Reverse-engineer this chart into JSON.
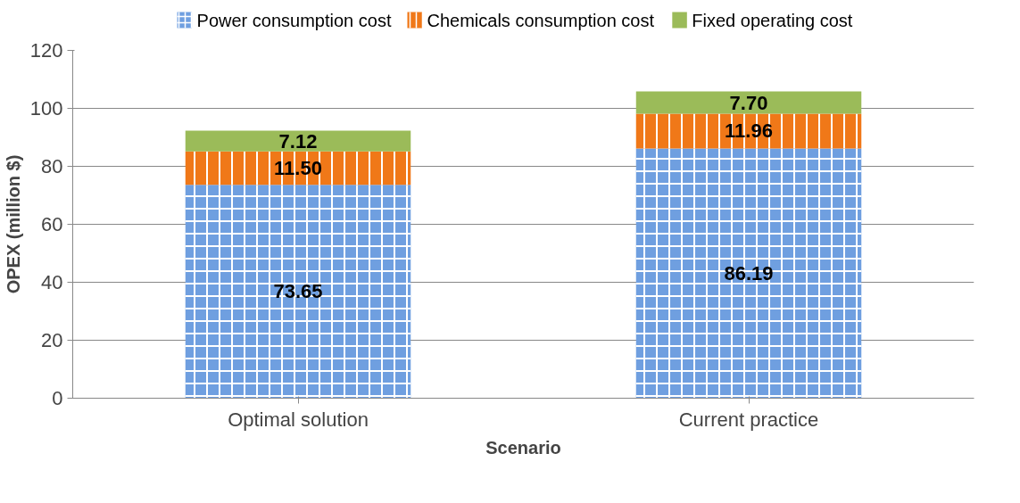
{
  "chart_data": {
    "type": "bar",
    "stacked": true,
    "xlabel": "Scenario",
    "ylabel": "OPEX (million $)",
    "categories": [
      "Optimal solution",
      "Current practice"
    ],
    "series": [
      {
        "name": "Power consumption cost",
        "color": "#6f9fe0",
        "values": [
          73.65,
          86.19
        ],
        "value_labels": [
          "73.65",
          "86.19"
        ]
      },
      {
        "name": "Chemicals consumption cost",
        "color": "#f07818",
        "values": [
          11.5,
          11.96
        ],
        "value_labels": [
          "11.50",
          "11.96"
        ]
      },
      {
        "name": "Fixed operating cost",
        "color": "#9bbb59",
        "values": [
          7.12,
          7.7
        ],
        "value_labels": [
          "7.12",
          "7.70"
        ]
      }
    ],
    "ylim": [
      0,
      120
    ],
    "yticks": [
      0,
      20,
      40,
      60,
      80,
      100,
      120
    ],
    "grid": "y",
    "legend": "top"
  }
}
